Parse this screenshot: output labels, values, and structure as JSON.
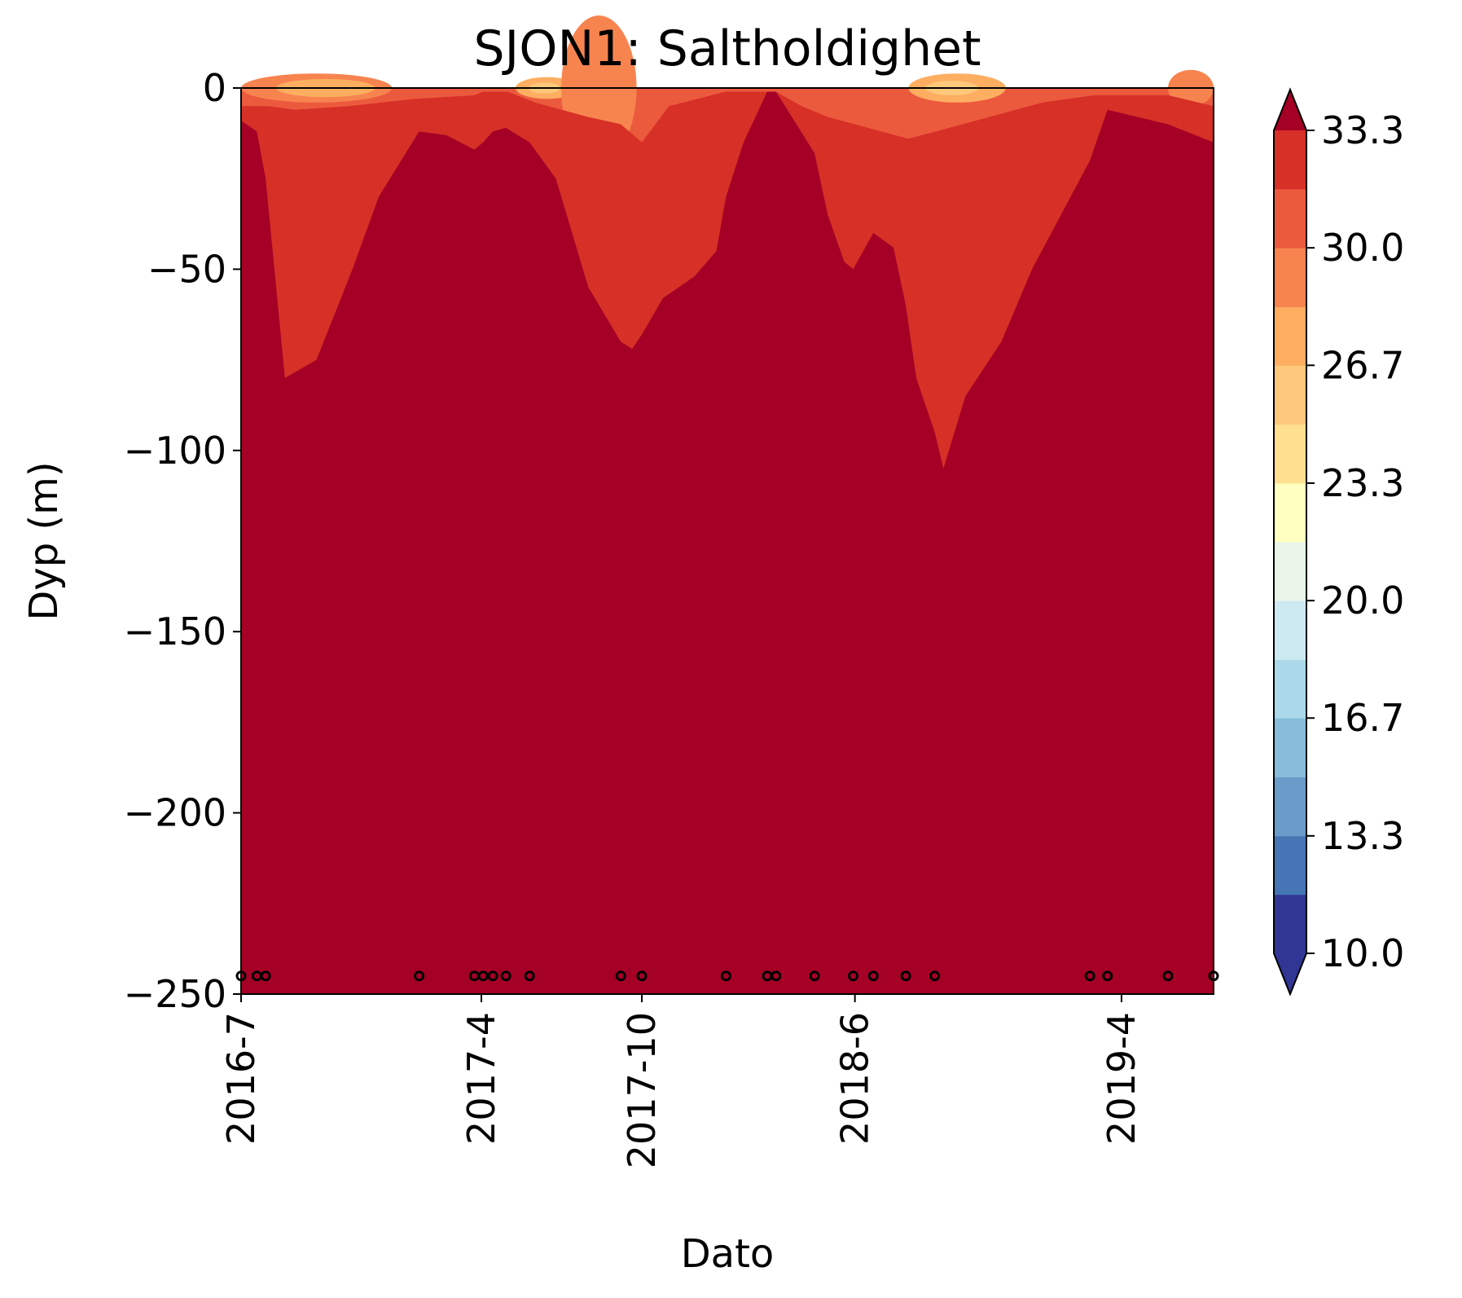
{
  "chart_data": {
    "type": "heatmap",
    "title": "SJON1: Saltholdighet",
    "xlabel": "Dato",
    "ylabel": "Dyp (m)",
    "ylim": [
      -250,
      0
    ],
    "xlim": [
      "2016-07-01",
      "2019-07-15"
    ],
    "yticks": [
      {
        "value": 0,
        "label": "0"
      },
      {
        "value": -50,
        "label": "−50"
      },
      {
        "value": -100,
        "label": "−100"
      },
      {
        "value": -150,
        "label": "−150"
      },
      {
        "value": -200,
        "label": "−200"
      },
      {
        "value": -250,
        "label": "−250"
      }
    ],
    "xticks": [
      {
        "date": "2016-07-01",
        "label": "2016-7"
      },
      {
        "date": "2017-04-01",
        "label": "2017-4"
      },
      {
        "date": "2017-10-01",
        "label": "2017-10"
      },
      {
        "date": "2018-06-01",
        "label": "2018-6"
      },
      {
        "date": "2019-04-01",
        "label": "2019-4"
      }
    ],
    "colorbar": {
      "levels": [
        10.0,
        11.67,
        13.33,
        15.0,
        16.67,
        18.33,
        20.0,
        21.67,
        23.33,
        25.0,
        26.67,
        28.33,
        30.0,
        31.67,
        33.33
      ],
      "colors": [
        "#313695",
        "#4575b4",
        "#6a9bc9",
        "#87bcdb",
        "#abd9e9",
        "#cde9f2",
        "#e9f5e8",
        "#ffffbf",
        "#fee090",
        "#fec87c",
        "#fdae61",
        "#f7844f",
        "#ec5a3e",
        "#d73027"
      ],
      "under_color": "#313695",
      "over_color": "#a50026",
      "tick_labels": [
        "10.0",
        "13.3",
        "16.7",
        "20.0",
        "23.3",
        "26.7",
        "30.0",
        "33.3"
      ],
      "tick_values": [
        10.0,
        13.33,
        16.67,
        20.0,
        23.33,
        26.67,
        30.0,
        33.33
      ]
    },
    "sample_dates": [
      "2016-07-01",
      "2016-07-19",
      "2016-07-29",
      "2017-01-20",
      "2017-03-24",
      "2017-04-03",
      "2017-04-14",
      "2017-04-29",
      "2017-05-26",
      "2017-09-07",
      "2017-10-01",
      "2018-01-05",
      "2018-02-21",
      "2018-03-03",
      "2018-04-16",
      "2018-05-30",
      "2018-06-22",
      "2018-07-29",
      "2018-08-31",
      "2019-02-24",
      "2019-03-16",
      "2019-05-24",
      "2019-07-15"
    ],
    "sample_depth": -245,
    "deep_water_upper_boundary": {
      "comment_free": true,
      "dates": [
        "2016-07-01",
        "2016-07-19",
        "2016-07-29",
        "2016-08-10",
        "2016-08-20",
        "2016-09-25",
        "2016-11-05",
        "2016-12-05",
        "2017-01-20",
        "2017-02-20",
        "2017-03-24",
        "2017-04-03",
        "2017-04-14",
        "2017-04-29",
        "2017-05-26",
        "2017-06-25",
        "2017-08-01",
        "2017-09-07",
        "2017-09-20",
        "2017-10-01",
        "2017-10-25",
        "2017-11-30",
        "2017-12-25",
        "2018-01-05",
        "2018-01-25",
        "2018-02-21",
        "2018-03-03",
        "2018-04-16",
        "2018-05-01",
        "2018-05-20",
        "2018-05-30",
        "2018-06-22",
        "2018-07-15",
        "2018-07-29",
        "2018-08-10",
        "2018-08-31",
        "2018-09-10",
        "2018-10-05",
        "2018-11-15",
        "2018-12-20",
        "2019-02-24",
        "2019-03-16",
        "2019-05-24",
        "2019-07-15"
      ],
      "depths": [
        -9,
        -12,
        -25,
        -55,
        -80,
        -75,
        -50,
        -30,
        -12,
        -13,
        -17,
        -15,
        -12,
        -11,
        -15,
        -25,
        -55,
        -70,
        -72,
        -68,
        -58,
        -52,
        -45,
        -30,
        -15,
        -1,
        -1,
        -18,
        -35,
        -48,
        -50,
        -40,
        -44,
        -60,
        -80,
        -95,
        -105,
        -85,
        -70,
        -50,
        -20,
        -6,
        -10,
        -15
      ]
    },
    "mid_layer_upper_boundary": {
      "dates": [
        "2016-07-01",
        "2016-08-01",
        "2016-09-01",
        "2016-11-01",
        "2017-01-15",
        "2017-03-24",
        "2017-04-03",
        "2017-05-01",
        "2017-06-01",
        "2017-08-01",
        "2017-09-07",
        "2017-10-01",
        "2017-11-01",
        "2018-01-05",
        "2018-02-21",
        "2018-03-03",
        "2018-04-01",
        "2018-05-01",
        "2018-06-01",
        "2018-07-01",
        "2018-08-01",
        "2018-09-01",
        "2018-11-01",
        "2019-01-01",
        "2019-03-01",
        "2019-05-24",
        "2019-07-15"
      ],
      "depths": [
        -5,
        -5,
        -6,
        -5,
        -3,
        -2,
        -1,
        -1,
        -4,
        -8,
        -10,
        -15,
        -5,
        -1,
        -1,
        -1,
        -5,
        -8,
        -10,
        -12,
        -14,
        -12,
        -8,
        -4,
        -2,
        -2,
        -5
      ]
    },
    "series": []
  }
}
